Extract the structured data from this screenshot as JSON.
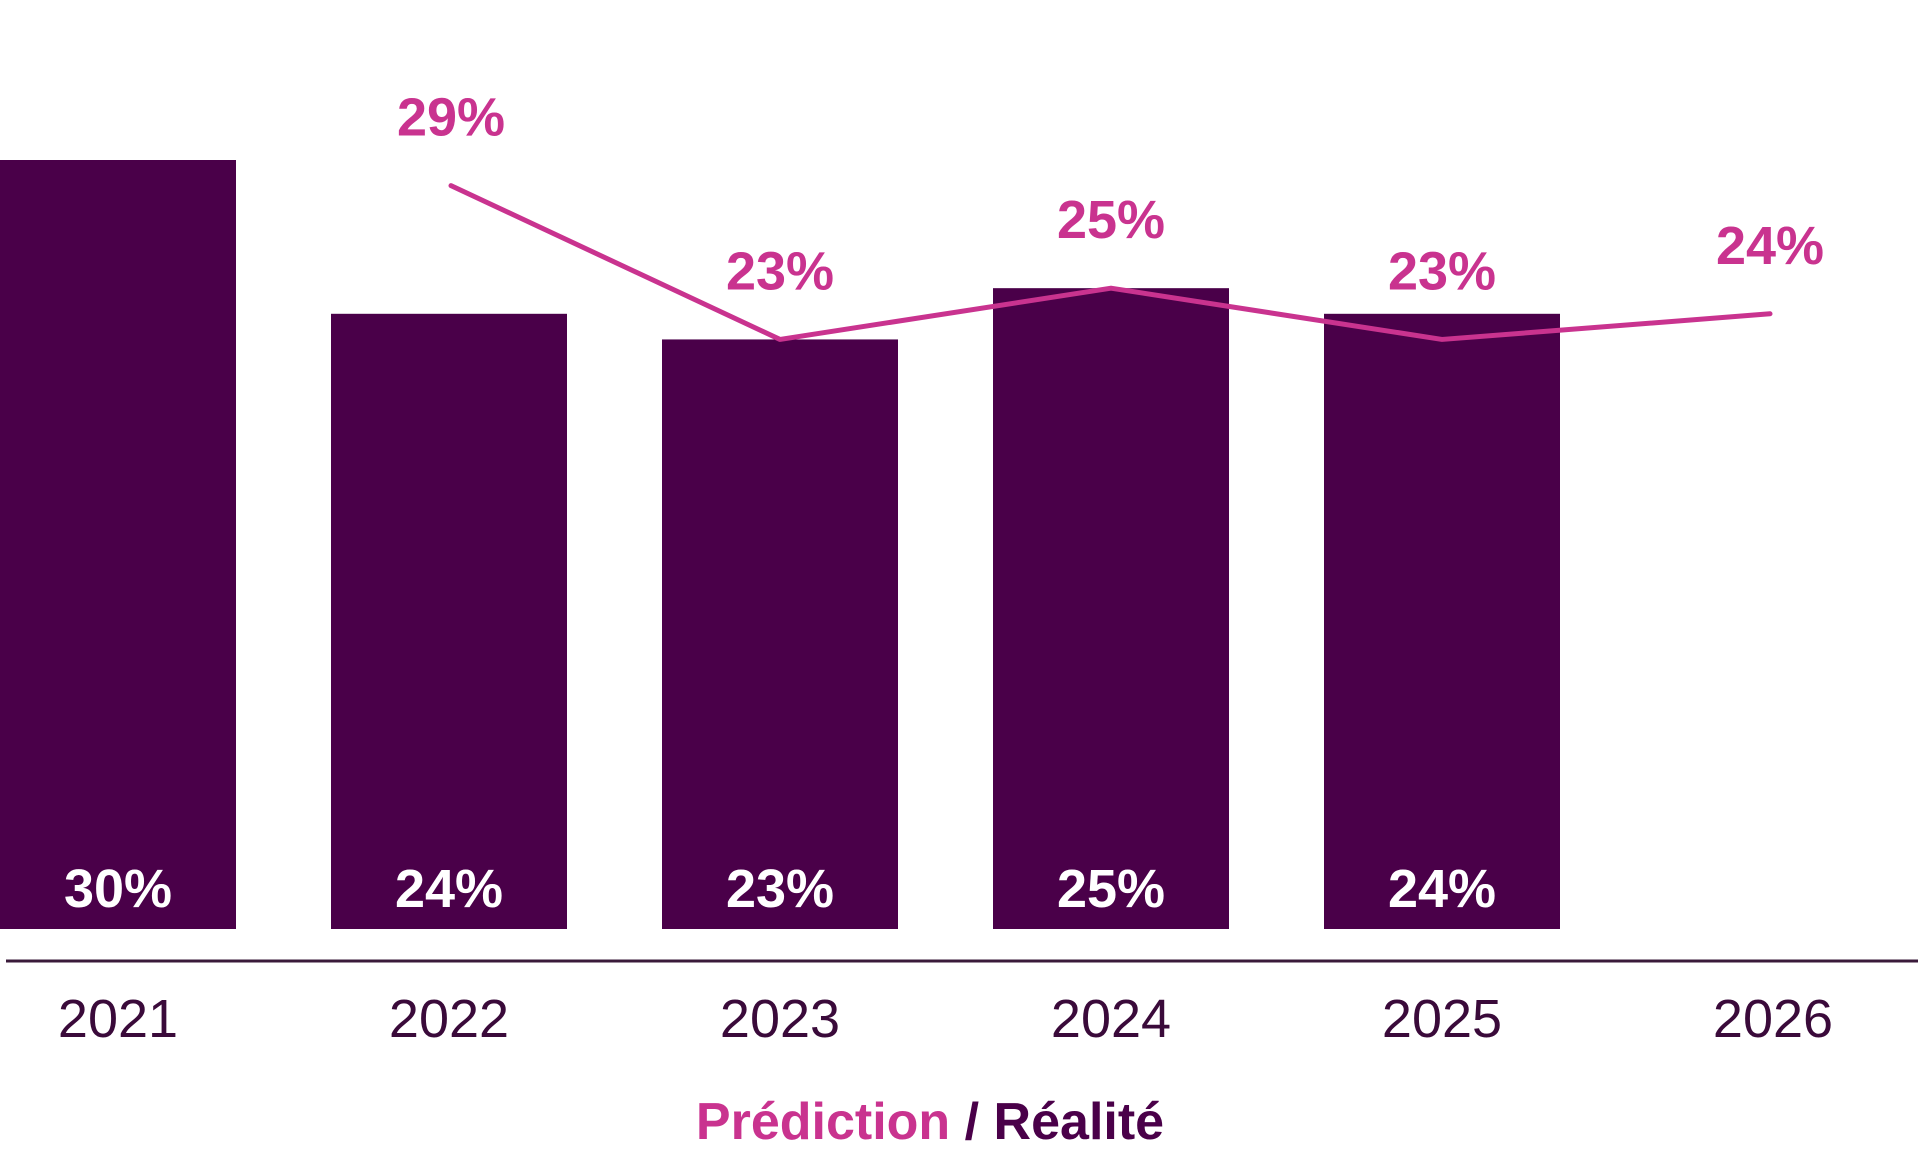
{
  "colors": {
    "bar": "#4a0049",
    "line": "#c9338f",
    "axis": "#3a1a3a",
    "tick_text": "#3a0a3a",
    "bar_label": "#ffffff"
  },
  "legend": {
    "prediction": "Prédiction",
    "separator": " / ",
    "reality": "Réalité"
  },
  "chart_data": {
    "type": "bar",
    "categories": [
      "2021",
      "2022",
      "2023",
      "2024",
      "2025",
      "2026"
    ],
    "ylim": [
      0,
      30
    ],
    "series": [
      {
        "name": "Réalité",
        "type": "bar",
        "values": [
          30,
          24,
          23,
          25,
          24,
          null
        ],
        "labels": [
          "30%",
          "24%",
          "23%",
          "25%",
          "24%",
          null
        ]
      },
      {
        "name": "Prédiction",
        "type": "line",
        "values": [
          null,
          29,
          23,
          25,
          23,
          24
        ],
        "labels": [
          null,
          "29%",
          "23%",
          "25%",
          "23%",
          "24%"
        ]
      }
    ],
    "grid": false,
    "legend_position": "bottom-center",
    "xlabel": "",
    "ylabel": ""
  }
}
